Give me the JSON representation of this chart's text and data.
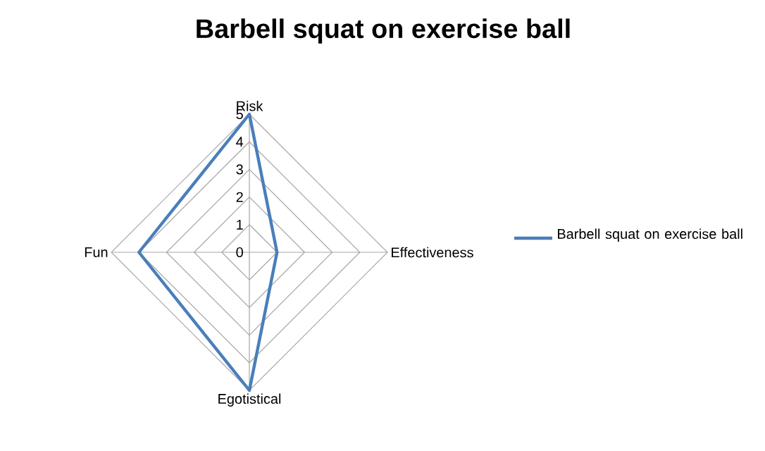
{
  "chart_data": {
    "type": "radar",
    "title": "Barbell squat on exercise ball",
    "categories": [
      "Risk",
      "Effectiveness",
      "Egotistical",
      "Fun"
    ],
    "series": [
      {
        "name": "Barbell squat on exercise ball",
        "color": "#4a7ebb",
        "values": [
          5,
          1,
          5,
          4
        ]
      }
    ],
    "ylim": [
      0,
      5
    ],
    "yticks": [
      0,
      1,
      2,
      3,
      4,
      5
    ],
    "grid": true,
    "legend": "right"
  }
}
